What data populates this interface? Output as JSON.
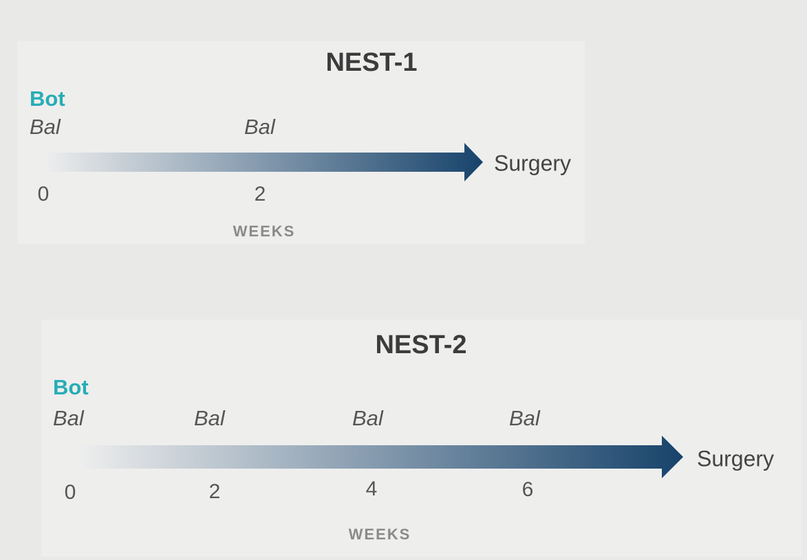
{
  "panels": [
    {
      "title": "NEST-1",
      "agent": "Bot",
      "events": [
        "Bal",
        "Bal"
      ],
      "ticks": [
        "0",
        "2"
      ],
      "endpoint": "Surgery",
      "axis_label": "WEEKS"
    },
    {
      "title": "NEST-2",
      "agent": "Bot",
      "events": [
        "Bal",
        "Bal",
        "Bal",
        "Bal"
      ],
      "ticks": [
        "0",
        "2",
        "4",
        "6"
      ],
      "endpoint": "Surgery",
      "axis_label": "WEEKS"
    }
  ]
}
